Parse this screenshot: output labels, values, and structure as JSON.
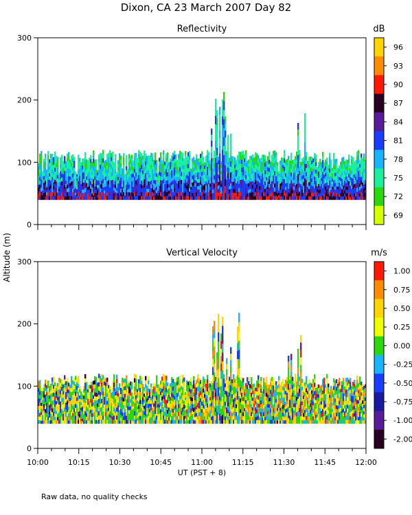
{
  "page_title": "Dixon, CA 23 March 2007  Day  82",
  "y_axis_label": "Altitude  (m)",
  "x_axis_label": "UT  (PST + 8)",
  "footer_note": "Raw data, no quality checks",
  "chart_data": [
    {
      "type": "heatmap",
      "title": "Reflectivity",
      "units": "dB",
      "xlabel": "UT  (PST + 8)",
      "ylabel": "Altitude  (m)",
      "xlim": [
        10.0,
        12.0
      ],
      "ylim": [
        0,
        300
      ],
      "y_ticks": [
        "300",
        "200",
        "100",
        "0"
      ],
      "x_ticks": [
        "10:00",
        "10:15",
        "10:30",
        "10:45",
        "11:00",
        "11:15",
        "11:30",
        "11:45",
        "12:00"
      ],
      "colorbar": {
        "labels": [
          "96",
          "93",
          "90",
          "87",
          "84",
          "81",
          "78",
          "75",
          "72",
          "69"
        ],
        "colors": [
          "#ffd400",
          "#ff8c00",
          "#ff1a00",
          "#2a0020",
          "#5a1b9a",
          "#1a3cff",
          "#19b4ff",
          "#19f0a0",
          "#2ad80c",
          "#d6ff00"
        ]
      },
      "data_bottom_m": 40,
      "typical_top_m": 120,
      "max_top_m": 220
    },
    {
      "type": "heatmap",
      "title": "Vertical Velocity",
      "units": "m/s",
      "xlabel": "UT  (PST + 8)",
      "ylabel": "Altitude  (m)",
      "xlim": [
        10.0,
        12.0
      ],
      "ylim": [
        0,
        300
      ],
      "y_ticks": [
        "300",
        "200",
        "100",
        "0"
      ],
      "x_ticks": [
        "10:00",
        "10:15",
        "10:30",
        "10:45",
        "11:00",
        "11:15",
        "11:30",
        "11:45",
        "12:00"
      ],
      "colorbar": {
        "labels": [
          "1.00",
          "0.75",
          "0.50",
          "0.25",
          "0.00",
          "-0.25",
          "-0.50",
          "-0.75",
          "-1.00",
          "-2.00"
        ],
        "colors": [
          "#ff1a00",
          "#ff8c00",
          "#ffd400",
          "#f0ff00",
          "#2ad80c",
          "#19b4ff",
          "#1a3cff",
          "#1a1aa0",
          "#5a1b9a",
          "#2a0020"
        ]
      },
      "data_bottom_m": 40,
      "typical_top_m": 120,
      "max_top_m": 220
    }
  ]
}
